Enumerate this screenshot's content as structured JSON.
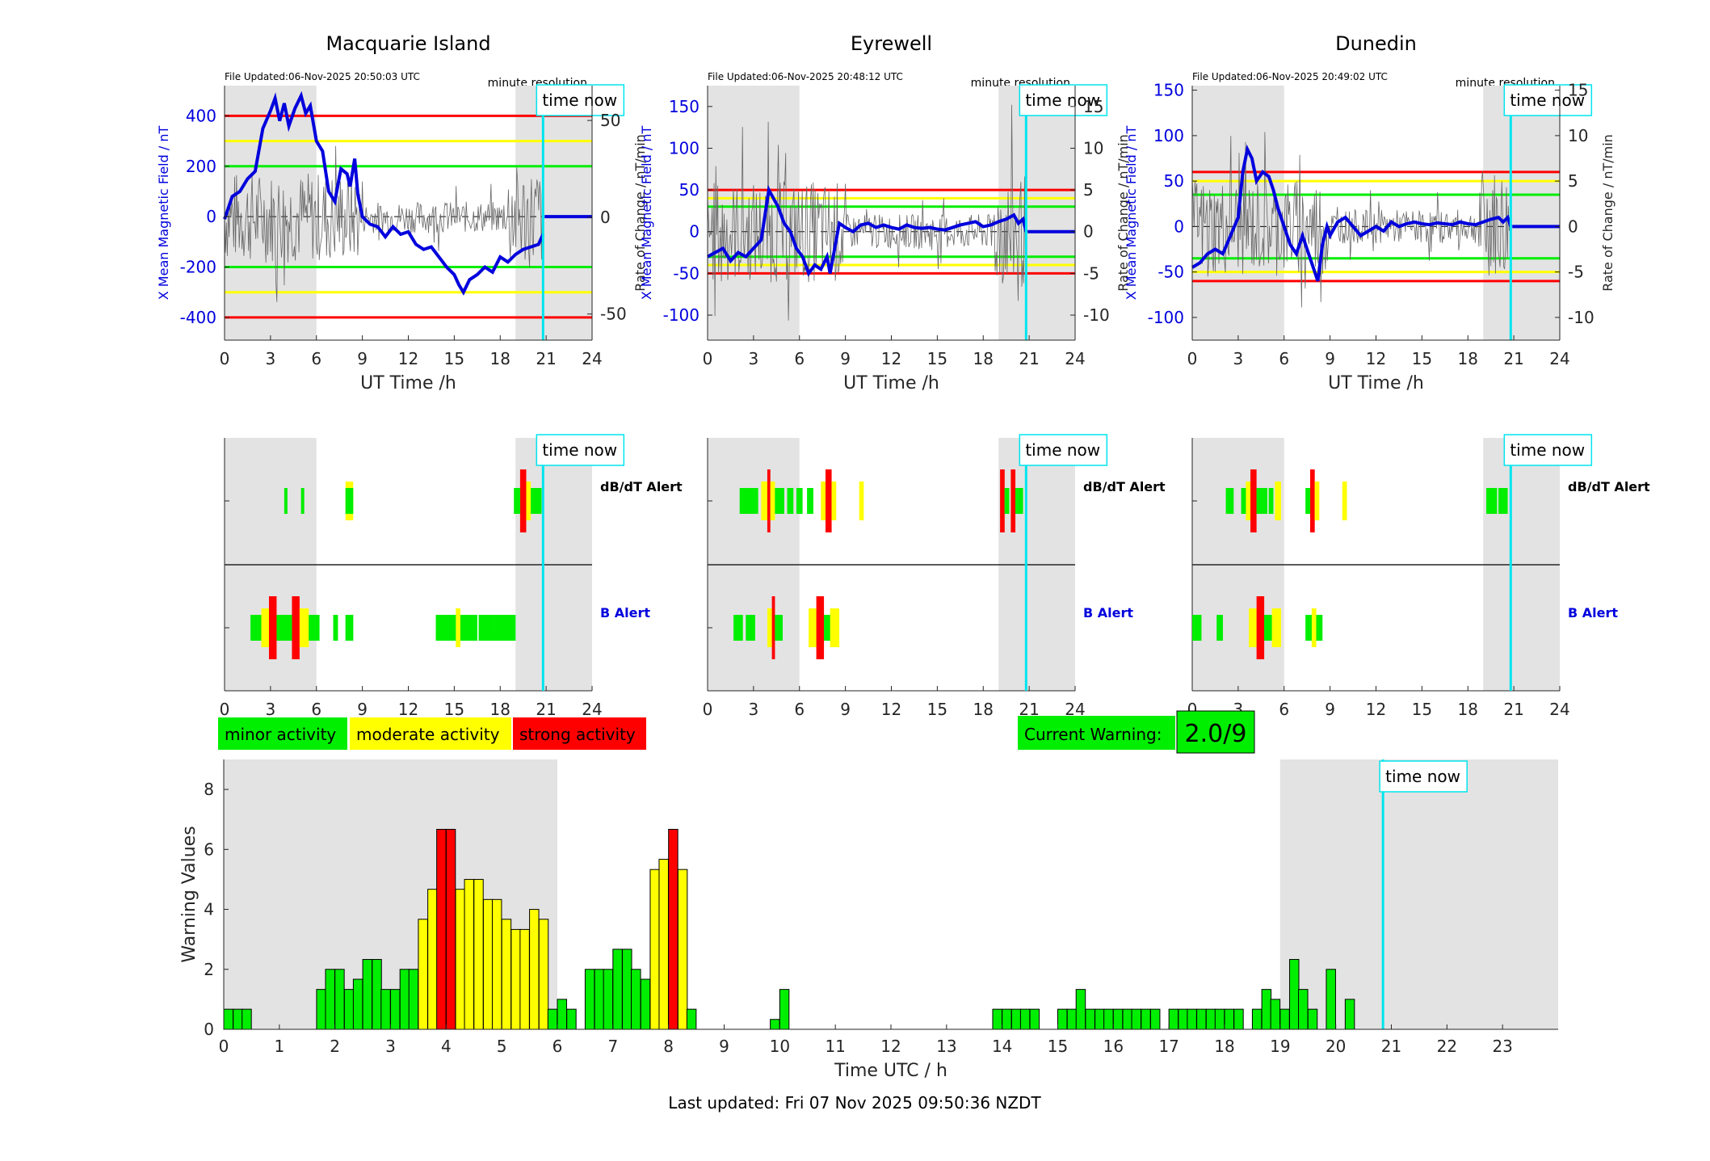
{
  "stations": [
    {
      "name": "Macquarie Island",
      "file_updated": "File Updated:06-Nov-2025 20:50:03 UTC",
      "resolution": "minute resolution",
      "ylim": [
        -490,
        520
      ],
      "yticks": [
        -400,
        -200,
        0,
        200,
        400
      ],
      "thresholds": [
        400,
        300,
        200
      ],
      "rlim": [
        -63.5,
        68
      ],
      "rticks": [
        -50,
        0,
        50
      ],
      "trace": [
        [
          0,
          -10
        ],
        [
          0.5,
          80
        ],
        [
          1,
          100
        ],
        [
          1.5,
          150
        ],
        [
          2,
          180
        ],
        [
          2.5,
          350
        ],
        [
          3,
          420
        ],
        [
          3.3,
          470
        ],
        [
          3.6,
          380
        ],
        [
          3.9,
          450
        ],
        [
          4.2,
          360
        ],
        [
          4.6,
          430
        ],
        [
          5,
          480
        ],
        [
          5.3,
          410
        ],
        [
          5.6,
          440
        ],
        [
          6,
          300
        ],
        [
          6.4,
          260
        ],
        [
          6.8,
          100
        ],
        [
          7.2,
          60
        ],
        [
          7.6,
          190
        ],
        [
          8,
          170
        ],
        [
          8.2,
          120
        ],
        [
          8.5,
          230
        ],
        [
          8.7,
          90
        ],
        [
          9,
          0
        ],
        [
          9.5,
          -30
        ],
        [
          10,
          -40
        ],
        [
          10.5,
          -80
        ],
        [
          11,
          -40
        ],
        [
          11.5,
          -70
        ],
        [
          12,
          -60
        ],
        [
          12.5,
          -110
        ],
        [
          13,
          -130
        ],
        [
          13.5,
          -120
        ],
        [
          14,
          -160
        ],
        [
          14.5,
          -200
        ],
        [
          15,
          -230
        ],
        [
          15.3,
          -270
        ],
        [
          15.6,
          -300
        ],
        [
          16,
          -250
        ],
        [
          16.5,
          -230
        ],
        [
          17,
          -200
        ],
        [
          17.5,
          -220
        ],
        [
          18,
          -160
        ],
        [
          18.5,
          -180
        ],
        [
          19,
          -150
        ],
        [
          19.5,
          -130
        ],
        [
          20,
          -120
        ],
        [
          20.5,
          -110
        ],
        [
          20.8,
          -70
        ]
      ],
      "trace_flat": [
        [
          20.9,
          0
        ],
        [
          24,
          0
        ]
      ],
      "dbdt_bars": [
        [
          3.9,
          4.1,
          "green"
        ],
        [
          5.0,
          5.2,
          "green"
        ],
        [
          7.9,
          8.4,
          "green"
        ],
        [
          7.9,
          8.4,
          "yellow"
        ],
        [
          18.9,
          19.3,
          "green"
        ],
        [
          19.3,
          19.7,
          "red"
        ],
        [
          19.7,
          20.0,
          "yellow"
        ],
        [
          20.0,
          20.7,
          "green"
        ]
      ],
      "b_bars": [
        [
          1.7,
          2.4,
          "green"
        ],
        [
          2.4,
          2.9,
          "yellow"
        ],
        [
          2.9,
          3.4,
          "red"
        ],
        [
          3.4,
          4.4,
          "green"
        ],
        [
          4.4,
          4.9,
          "red"
        ],
        [
          4.9,
          5.5,
          "yellow"
        ],
        [
          5.5,
          6.2,
          "green"
        ],
        [
          7.1,
          7.4,
          "green"
        ],
        [
          7.9,
          8.4,
          "green"
        ],
        [
          13.8,
          14.8,
          "green"
        ],
        [
          14.8,
          15.1,
          "green"
        ],
        [
          15.1,
          15.4,
          "yellow"
        ],
        [
          15.4,
          16.5,
          "green"
        ],
        [
          16.6,
          17.6,
          "green"
        ],
        [
          17.6,
          19.0,
          "green"
        ]
      ],
      "now": 20.8,
      "shade": [
        [
          0,
          6
        ],
        [
          19,
          24
        ]
      ]
    },
    {
      "name": "Eyrewell",
      "file_updated": "File Updated:06-Nov-2025 20:48:12 UTC",
      "resolution": "minute resolution",
      "ylim": [
        -130,
        175
      ],
      "yticks": [
        -100,
        -50,
        0,
        50,
        100,
        150
      ],
      "thresholds": [
        50,
        40,
        30
      ],
      "rlim": [
        -13,
        17.5
      ],
      "rticks": [
        -10,
        -5,
        0,
        5,
        10,
        15
      ],
      "trace": [
        [
          0,
          -30
        ],
        [
          0.5,
          -25
        ],
        [
          1,
          -20
        ],
        [
          1.5,
          -35
        ],
        [
          2,
          -25
        ],
        [
          2.5,
          -30
        ],
        [
          3,
          -20
        ],
        [
          3.5,
          -10
        ],
        [
          4,
          50
        ],
        [
          4.3,
          40
        ],
        [
          4.6,
          30
        ],
        [
          5,
          10
        ],
        [
          5.4,
          0
        ],
        [
          5.8,
          -20
        ],
        [
          6.2,
          -30
        ],
        [
          6.6,
          -50
        ],
        [
          7,
          -40
        ],
        [
          7.4,
          -45
        ],
        [
          7.8,
          -30
        ],
        [
          8,
          -50
        ],
        [
          8.3,
          -20
        ],
        [
          8.6,
          10
        ],
        [
          9,
          5
        ],
        [
          9.5,
          0
        ],
        [
          10,
          8
        ],
        [
          10.5,
          10
        ],
        [
          11,
          5
        ],
        [
          11.5,
          8
        ],
        [
          12,
          5
        ],
        [
          12.5,
          3
        ],
        [
          13,
          8
        ],
        [
          13.5,
          5
        ],
        [
          14,
          4
        ],
        [
          14.5,
          5
        ],
        [
          15,
          3
        ],
        [
          15.5,
          2
        ],
        [
          16,
          5
        ],
        [
          16.5,
          8
        ],
        [
          17,
          10
        ],
        [
          17.5,
          12
        ],
        [
          18,
          6
        ],
        [
          18.5,
          8
        ],
        [
          19,
          12
        ],
        [
          19.5,
          15
        ],
        [
          20,
          20
        ],
        [
          20.3,
          10
        ],
        [
          20.6,
          15
        ],
        [
          20.8,
          0
        ]
      ],
      "trace_flat": [
        [
          20.9,
          0
        ],
        [
          24,
          0
        ]
      ],
      "dbdt_bars": [
        [
          2.1,
          2.8,
          "green"
        ],
        [
          2.8,
          3.3,
          "green"
        ],
        [
          3.5,
          3.9,
          "yellow"
        ],
        [
          3.9,
          4.1,
          "red"
        ],
        [
          4.1,
          4.4,
          "yellow"
        ],
        [
          4.4,
          4.7,
          "green"
        ],
        [
          4.7,
          5.0,
          "green"
        ],
        [
          5.2,
          5.6,
          "green"
        ],
        [
          5.8,
          6.2,
          "green"
        ],
        [
          6.5,
          6.9,
          "green"
        ],
        [
          7.4,
          7.7,
          "yellow"
        ],
        [
          7.7,
          8.1,
          "red"
        ],
        [
          8.1,
          8.4,
          "yellow"
        ],
        [
          9.9,
          10.2,
          "yellow"
        ],
        [
          19.1,
          19.4,
          "red"
        ],
        [
          19.4,
          19.7,
          "green"
        ],
        [
          19.8,
          20.1,
          "red"
        ],
        [
          20.1,
          20.6,
          "green"
        ]
      ],
      "b_bars": [
        [
          1.7,
          2.3,
          "green"
        ],
        [
          2.5,
          3.1,
          "green"
        ],
        [
          3.9,
          4.2,
          "yellow"
        ],
        [
          4.2,
          4.4,
          "red"
        ],
        [
          4.4,
          4.9,
          "green"
        ],
        [
          6.6,
          7.1,
          "yellow"
        ],
        [
          7.1,
          7.6,
          "red"
        ],
        [
          7.6,
          8.0,
          "green"
        ],
        [
          8.0,
          8.6,
          "yellow"
        ]
      ],
      "now": 20.8,
      "shade": [
        [
          0,
          6
        ],
        [
          19,
          24
        ]
      ]
    },
    {
      "name": "Dunedin",
      "file_updated": "File Updated:06-Nov-2025 20:49:02 UTC",
      "resolution": "minute resolution",
      "ylim": [
        -125,
        155
      ],
      "yticks": [
        -100,
        -50,
        0,
        50,
        100,
        150
      ],
      "thresholds": [
        60,
        50,
        35
      ],
      "rlim": [
        -12.5,
        15.5
      ],
      "rticks": [
        -10,
        -5,
        0,
        5,
        10,
        15
      ],
      "trace": [
        [
          0,
          -45
        ],
        [
          0.5,
          -40
        ],
        [
          1,
          -30
        ],
        [
          1.5,
          -25
        ],
        [
          2,
          -30
        ],
        [
          2.5,
          -10
        ],
        [
          3,
          10
        ],
        [
          3.3,
          60
        ],
        [
          3.6,
          85
        ],
        [
          3.9,
          75
        ],
        [
          4.2,
          50
        ],
        [
          4.6,
          60
        ],
        [
          5,
          55
        ],
        [
          5.3,
          40
        ],
        [
          5.6,
          20
        ],
        [
          6,
          0
        ],
        [
          6.4,
          -20
        ],
        [
          6.8,
          -30
        ],
        [
          7.2,
          -10
        ],
        [
          7.6,
          -30
        ],
        [
          8,
          -50
        ],
        [
          8.2,
          -60
        ],
        [
          8.5,
          -20
        ],
        [
          8.8,
          0
        ],
        [
          9,
          -10
        ],
        [
          9.5,
          5
        ],
        [
          10,
          10
        ],
        [
          10.5,
          0
        ],
        [
          11,
          -10
        ],
        [
          11.5,
          -5
        ],
        [
          12,
          0
        ],
        [
          12.5,
          -5
        ],
        [
          13,
          5
        ],
        [
          13.5,
          0
        ],
        [
          14,
          3
        ],
        [
          14.5,
          5
        ],
        [
          15,
          3
        ],
        [
          15.5,
          2
        ],
        [
          16,
          4
        ],
        [
          16.5,
          3
        ],
        [
          17,
          2
        ],
        [
          17.5,
          5
        ],
        [
          18,
          3
        ],
        [
          18.5,
          2
        ],
        [
          19,
          5
        ],
        [
          19.5,
          8
        ],
        [
          20,
          10
        ],
        [
          20.3,
          5
        ],
        [
          20.6,
          10
        ],
        [
          20.8,
          0
        ]
      ],
      "trace_flat": [
        [
          20.9,
          0
        ],
        [
          24,
          0
        ]
      ],
      "dbdt_bars": [
        [
          2.2,
          2.7,
          "green"
        ],
        [
          3.2,
          3.5,
          "green"
        ],
        [
          3.5,
          3.8,
          "yellow"
        ],
        [
          3.8,
          4.2,
          "red"
        ],
        [
          4.2,
          4.6,
          "green"
        ],
        [
          4.6,
          4.9,
          "green"
        ],
        [
          5.0,
          5.3,
          "green"
        ],
        [
          5.4,
          5.8,
          "yellow"
        ],
        [
          7.4,
          7.7,
          "green"
        ],
        [
          7.7,
          8.0,
          "red"
        ],
        [
          8.0,
          8.3,
          "yellow"
        ],
        [
          9.8,
          10.1,
          "yellow"
        ],
        [
          19.2,
          19.9,
          "green"
        ],
        [
          20.0,
          20.6,
          "green"
        ]
      ],
      "b_bars": [
        [
          0,
          0.6,
          "green"
        ],
        [
          1.6,
          2.0,
          "green"
        ],
        [
          3.7,
          4.2,
          "yellow"
        ],
        [
          4.2,
          4.7,
          "red"
        ],
        [
          4.7,
          5.2,
          "green"
        ],
        [
          5.2,
          5.8,
          "yellow"
        ],
        [
          7.4,
          7.8,
          "green"
        ],
        [
          7.8,
          8.1,
          "yellow"
        ],
        [
          8.1,
          8.5,
          "green"
        ]
      ],
      "now": 20.8,
      "shade": [
        [
          0,
          6
        ],
        [
          19,
          24
        ]
      ]
    }
  ],
  "labels": {
    "ut_time": "UT Time /h",
    "x_mean": "X Mean Magnetic Field / nT",
    "rate": "Rate of Change / nT/min",
    "time_now": "time now",
    "dbdt_alert": "dB/dT Alert",
    "b_alert": "B Alert"
  },
  "legend": {
    "minor": "minor activity",
    "moderate": "moderate activity",
    "strong": "strong activity"
  },
  "current_warning": {
    "label": "Current Warning:",
    "value": "2.0/9"
  },
  "footer": {
    "last_updated": "Last updated: Fri 07 Nov 2025 09:50:36 NZDT"
  },
  "colors": {
    "green": "#00ee00",
    "yellow": "#ffff00",
    "red": "#ff0000",
    "blue": "#0000dd",
    "cyan": "#00e5ee",
    "shade": "#e3e3e3"
  },
  "chart_data": {
    "type": "bar",
    "title": "",
    "xlabel": "Time UTC / h",
    "ylabel": "Warning Values",
    "xlim": [
      0,
      24
    ],
    "ylim": [
      0,
      9
    ],
    "xticks": [
      0,
      1,
      2,
      3,
      4,
      5,
      6,
      7,
      8,
      9,
      10,
      11,
      12,
      13,
      14,
      15,
      16,
      17,
      18,
      19,
      20,
      21,
      22,
      23
    ],
    "yticks": [
      0,
      2,
      4,
      6,
      8
    ],
    "bin_width": 0.1667,
    "now": 20.85,
    "shade": [
      [
        0,
        6
      ],
      [
        19,
        24
      ]
    ],
    "bars": [
      [
        0.0,
        0.67
      ],
      [
        0.17,
        0.67
      ],
      [
        0.33,
        0.67
      ],
      [
        1.67,
        1.33
      ],
      [
        1.83,
        2.0
      ],
      [
        2.0,
        2.0
      ],
      [
        2.17,
        1.33
      ],
      [
        2.33,
        1.67
      ],
      [
        2.5,
        2.33
      ],
      [
        2.67,
        2.33
      ],
      [
        2.83,
        1.33
      ],
      [
        3.0,
        1.33
      ],
      [
        3.17,
        2.0
      ],
      [
        3.33,
        2.0
      ],
      [
        3.5,
        3.67
      ],
      [
        3.67,
        4.67
      ],
      [
        3.83,
        6.67
      ],
      [
        4.0,
        6.67
      ],
      [
        4.17,
        4.67
      ],
      [
        4.33,
        5.0
      ],
      [
        4.5,
        5.0
      ],
      [
        4.67,
        4.33
      ],
      [
        4.83,
        4.33
      ],
      [
        5.0,
        3.67
      ],
      [
        5.17,
        3.33
      ],
      [
        5.33,
        3.33
      ],
      [
        5.5,
        4.0
      ],
      [
        5.67,
        3.67
      ],
      [
        5.83,
        0.67
      ],
      [
        6.0,
        1.0
      ],
      [
        6.17,
        0.67
      ],
      [
        6.5,
        2.0
      ],
      [
        6.67,
        2.0
      ],
      [
        6.83,
        2.0
      ],
      [
        7.0,
        2.67
      ],
      [
        7.17,
        2.67
      ],
      [
        7.33,
        2.0
      ],
      [
        7.5,
        1.67
      ],
      [
        7.67,
        5.33
      ],
      [
        7.83,
        5.67
      ],
      [
        8.0,
        6.67
      ],
      [
        8.17,
        5.33
      ],
      [
        8.33,
        0.67
      ],
      [
        9.83,
        0.33
      ],
      [
        10.0,
        1.33
      ],
      [
        13.83,
        0.67
      ],
      [
        14.0,
        0.67
      ],
      [
        14.17,
        0.67
      ],
      [
        14.33,
        0.67
      ],
      [
        14.5,
        0.67
      ],
      [
        15.0,
        0.67
      ],
      [
        15.17,
        0.67
      ],
      [
        15.33,
        1.33
      ],
      [
        15.5,
        0.67
      ],
      [
        15.67,
        0.67
      ],
      [
        15.83,
        0.67
      ],
      [
        16.0,
        0.67
      ],
      [
        16.17,
        0.67
      ],
      [
        16.33,
        0.67
      ],
      [
        16.5,
        0.67
      ],
      [
        16.67,
        0.67
      ],
      [
        17.0,
        0.67
      ],
      [
        17.17,
        0.67
      ],
      [
        17.33,
        0.67
      ],
      [
        17.5,
        0.67
      ],
      [
        17.67,
        0.67
      ],
      [
        17.83,
        0.67
      ],
      [
        18.0,
        0.67
      ],
      [
        18.17,
        0.67
      ],
      [
        18.5,
        0.67
      ],
      [
        18.67,
        1.33
      ],
      [
        18.83,
        1.0
      ],
      [
        19.0,
        0.67
      ],
      [
        19.17,
        2.33
      ],
      [
        19.33,
        1.33
      ],
      [
        19.5,
        0.67
      ],
      [
        19.83,
        2.0
      ],
      [
        20.17,
        1.0
      ]
    ]
  }
}
